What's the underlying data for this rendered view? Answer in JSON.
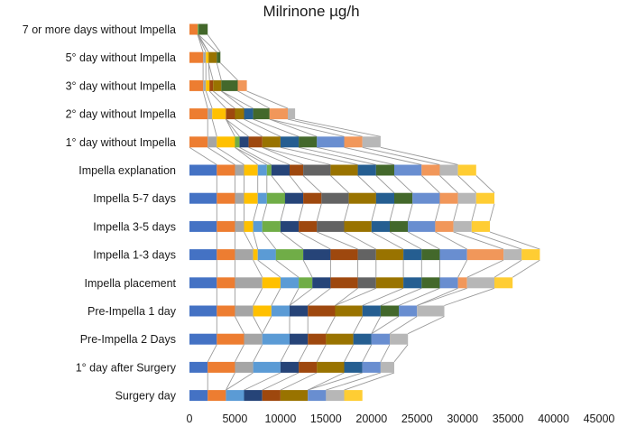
{
  "chart_data": {
    "type": "bar",
    "stacked": true,
    "orientation": "horizontal",
    "title": "Milrinone µg/h",
    "xlabel": "",
    "ylabel": "",
    "xlim": [
      0,
      45000
    ],
    "xticks": [
      0,
      5000,
      10000,
      15000,
      20000,
      25000,
      30000,
      35000,
      40000,
      45000
    ],
    "series_lines": true,
    "palette": [
      "#4472c4",
      "#ed7d31",
      "#a5a5a5",
      "#ffc000",
      "#5b9bd5",
      "#70ad47",
      "#264478",
      "#9e480e",
      "#636363",
      "#997300",
      "#255e91",
      "#43682b",
      "#698ed0",
      "#f1975a",
      "#b7b7b7",
      "#ffcd33"
    ],
    "categories": [
      "7 or more days without Impella",
      "5° day without Impella",
      "3° day without Impella",
      "2° day without Impella",
      "1° day without Impella",
      "Impella explanation",
      "Impella 5-7 days",
      "Impella 3-5 days",
      "Impella 1-3 days",
      "Impella placement",
      "Pre-Impella 1 day",
      "Pre-Impella 2 Days",
      "1° day after Surgery",
      "Surgery day"
    ],
    "segments": [
      [
        0,
        900,
        0,
        0,
        0,
        100,
        0,
        0,
        0,
        0,
        0,
        1000
      ],
      [
        0,
        1500,
        300,
        300,
        0,
        0,
        0,
        0,
        0,
        900,
        0,
        400
      ],
      [
        0,
        1500,
        300,
        400,
        0,
        0,
        0,
        400,
        0,
        900,
        0,
        1800,
        0,
        1000
      ],
      [
        0,
        2000,
        500,
        1500,
        0,
        0,
        0,
        1000,
        0,
        1000,
        1000,
        1800,
        0,
        2000,
        800
      ],
      [
        0,
        2000,
        1000,
        2000,
        0,
        500,
        1000,
        1500,
        0,
        2000,
        2000,
        2000,
        3000,
        2000,
        2000
      ],
      [
        3000,
        2000,
        1000,
        1500,
        1000,
        500,
        2000,
        1500,
        3000,
        3000,
        2000,
        2000,
        3000,
        2000,
        2000,
        2000
      ],
      [
        3000,
        2000,
        1000,
        1500,
        1000,
        2000,
        2000,
        2000,
        3000,
        3000,
        2000,
        2000,
        3000,
        2000,
        2000,
        2000
      ],
      [
        3000,
        2000,
        1000,
        1000,
        1000,
        2000,
        2000,
        2000,
        3000,
        3000,
        2000,
        2000,
        3000,
        2000,
        2000,
        2000
      ],
      [
        3000,
        2000,
        2000,
        500,
        2000,
        3000,
        3000,
        3000,
        2000,
        3000,
        2000,
        2000,
        3000,
        4000,
        2000,
        2000
      ],
      [
        3000,
        2000,
        3000,
        2000,
        2000,
        1500,
        2000,
        3000,
        2000,
        3000,
        2000,
        2000,
        2000,
        1000,
        3000,
        2000
      ],
      [
        3000,
        2000,
        2000,
        2000,
        2000,
        0,
        2000,
        3000,
        0,
        3000,
        2000,
        2000,
        2000,
        0,
        3000
      ],
      [
        3000,
        3000,
        2000,
        0,
        3000,
        0,
        2000,
        2000,
        0,
        3000,
        2000,
        0,
        2000,
        0,
        2000
      ],
      [
        2000,
        3000,
        2000,
        0,
        3000,
        0,
        2000,
        2000,
        0,
        3000,
        2000,
        0,
        2000,
        0,
        1500
      ],
      [
        2000,
        2000,
        0,
        0,
        2000,
        0,
        2000,
        2000,
        0,
        3000,
        0,
        0,
        2000,
        0,
        2000,
        2000
      ]
    ]
  }
}
